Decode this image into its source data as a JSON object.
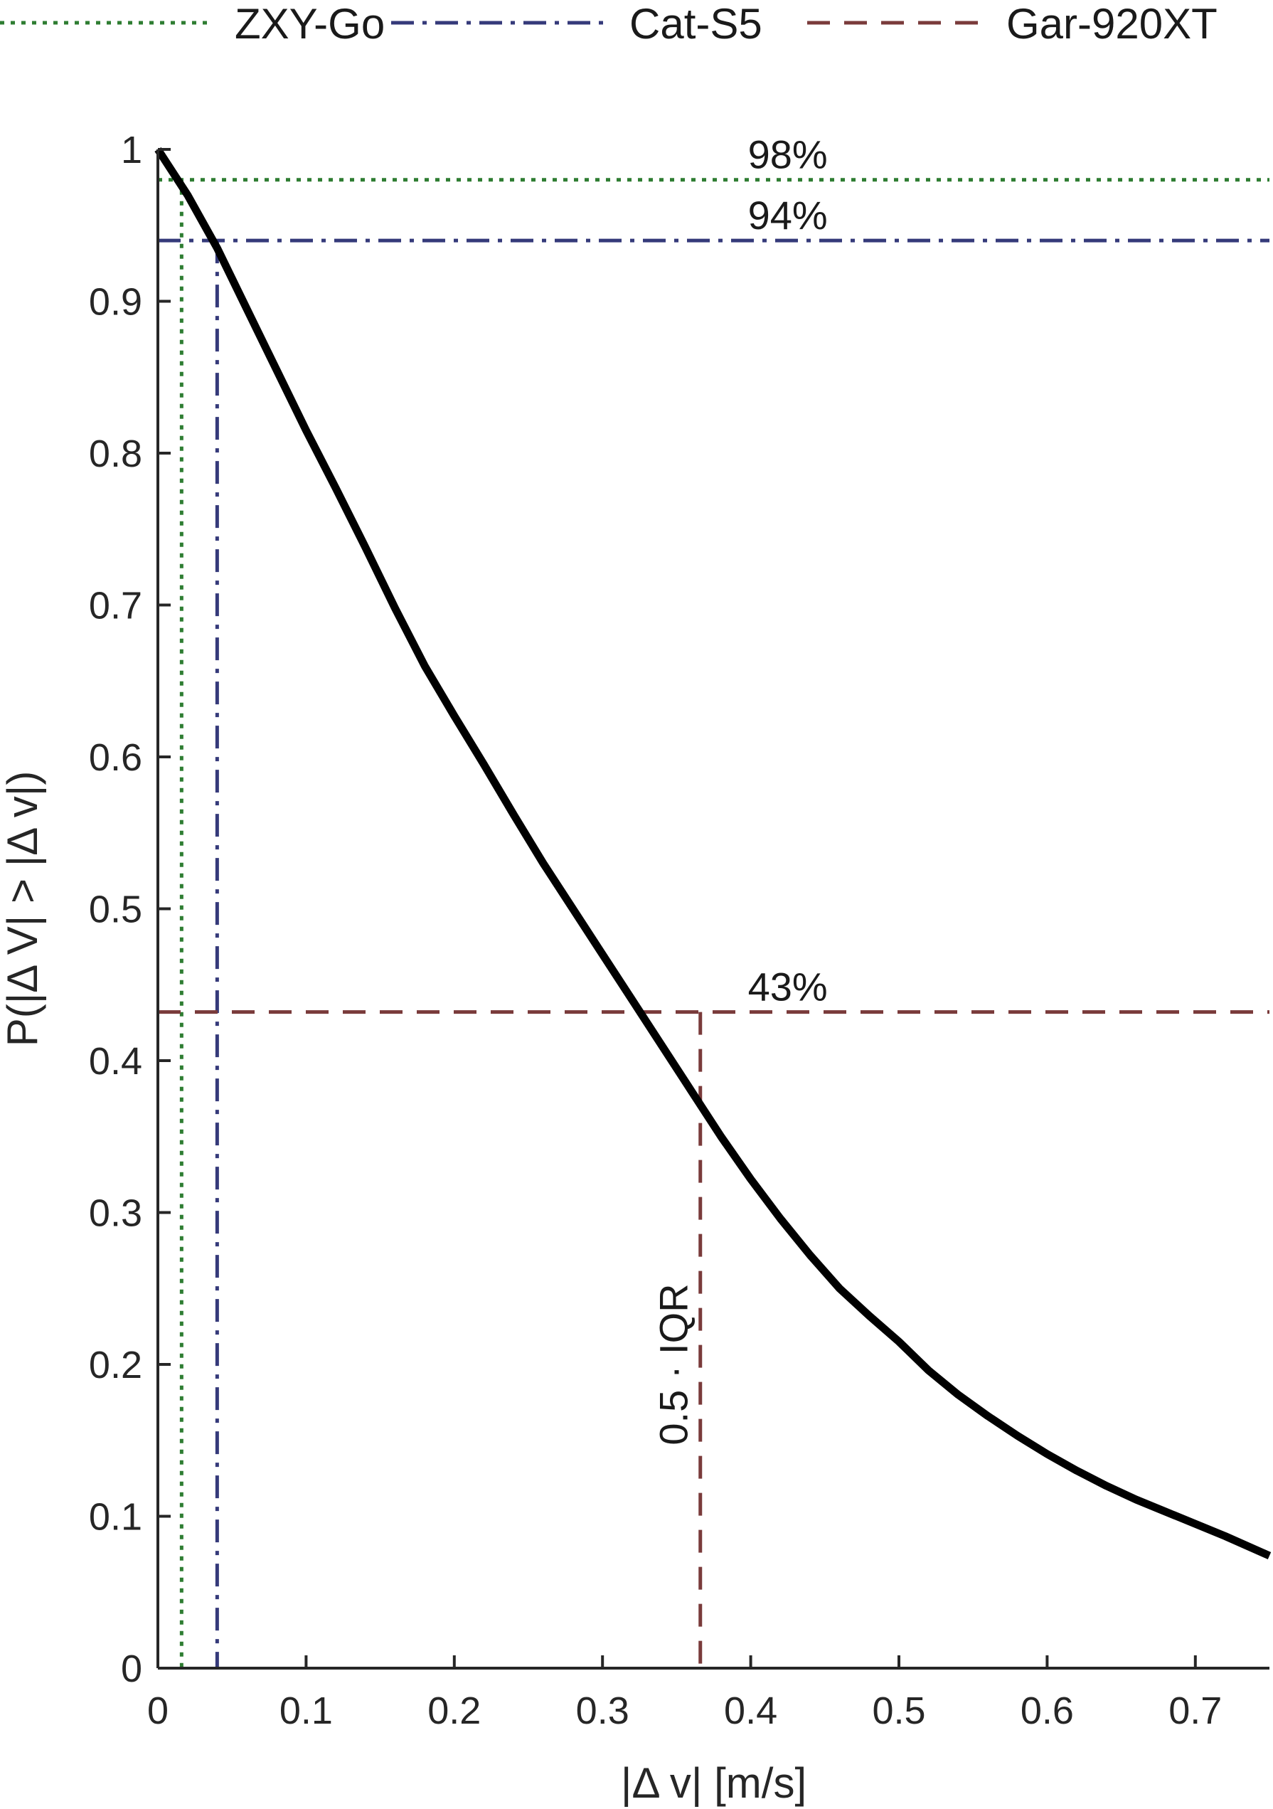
{
  "chart_data": {
    "type": "line",
    "xlabel": "|Δ v| [m/s]",
    "ylabel": "P(|Δ V| > |Δ v|)",
    "xlim": [
      0,
      0.75
    ],
    "ylim": [
      0,
      1
    ],
    "xticks": [
      0,
      0.1,
      0.2,
      0.3,
      0.4,
      0.5,
      0.6,
      0.7
    ],
    "xtick_labels": [
      "0",
      "0.1",
      "0.2",
      "0.3",
      "0.4",
      "0.5",
      "0.6",
      "0.7"
    ],
    "yticks": [
      0,
      0.1,
      0.2,
      0.3,
      0.4,
      0.5,
      0.6,
      0.7,
      0.8,
      0.9,
      1
    ],
    "ytick_labels": [
      "0",
      "0.1",
      "0.2",
      "0.3",
      "0.4",
      "0.5",
      "0.6",
      "0.7",
      "0.8",
      "0.9",
      "1"
    ],
    "grid": false,
    "legend_position": "top",
    "curve": {
      "color": "#000000",
      "x": [
        0,
        0.02,
        0.04,
        0.06,
        0.08,
        0.1,
        0.12,
        0.14,
        0.16,
        0.18,
        0.2,
        0.22,
        0.24,
        0.26,
        0.28,
        0.3,
        0.32,
        0.34,
        0.36,
        0.38,
        0.4,
        0.42,
        0.44,
        0.46,
        0.48,
        0.5,
        0.52,
        0.54,
        0.56,
        0.58,
        0.6,
        0.62,
        0.64,
        0.66,
        0.68,
        0.7,
        0.72,
        0.75
      ],
      "y": [
        1.0,
        0.97,
        0.935,
        0.895,
        0.855,
        0.815,
        0.777,
        0.738,
        0.698,
        0.66,
        0.627,
        0.595,
        0.562,
        0.53,
        0.5,
        0.47,
        0.44,
        0.41,
        0.38,
        0.35,
        0.322,
        0.296,
        0.272,
        0.25,
        0.232,
        0.215,
        0.196,
        0.18,
        0.166,
        0.153,
        0.141,
        0.13,
        0.12,
        0.111,
        0.103,
        0.095,
        0.087,
        0.074
      ]
    },
    "series": [
      {
        "name": "ZXY-Go",
        "color": "#2e7d32",
        "dash": "dotted",
        "x": 0.016,
        "y": 0.98,
        "label": "98%"
      },
      {
        "name": "Cat-S5",
        "color": "#353a7a",
        "dash": "dashdot",
        "x": 0.04,
        "y": 0.94,
        "label": "94%"
      },
      {
        "name": "Gar-920XT",
        "color": "#7a3b3b",
        "dash": "dashed",
        "x": 0.366,
        "y": 0.432,
        "label": "43%"
      }
    ],
    "annotations": [
      {
        "text": "0.5 · IQR",
        "x": 0.366,
        "y": 0.2,
        "rotation": -90
      }
    ]
  }
}
